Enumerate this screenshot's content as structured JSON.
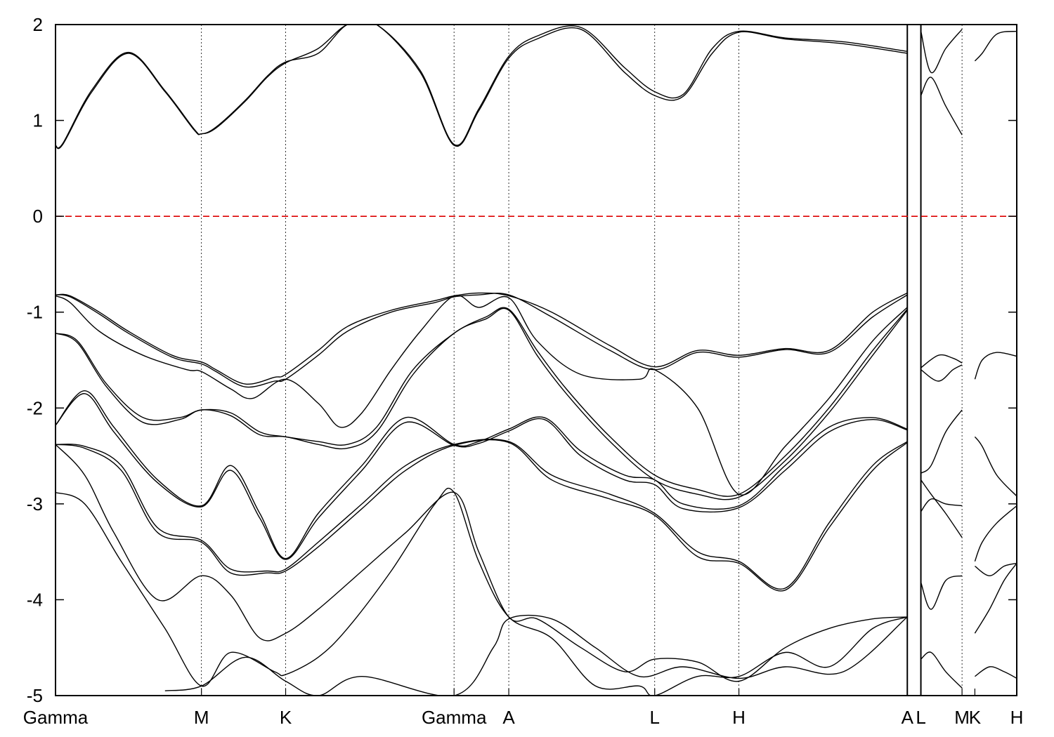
{
  "chart_data": {
    "type": "line",
    "title": "",
    "xlabel": "",
    "ylabel": "",
    "ylim": [
      -5,
      2
    ],
    "yticks": [
      2,
      1,
      0,
      -1,
      -2,
      -3,
      -4,
      -5
    ],
    "fermi_level": {
      "energy": 0,
      "color": "#dd0000",
      "style": "dashed"
    },
    "segments": [
      {
        "from": "Gamma",
        "to": "M",
        "x": [
          0,
          1
        ]
      },
      {
        "from": "M",
        "to": "K",
        "x": [
          1,
          1.577
        ]
      },
      {
        "from": "K",
        "to": "Gamma",
        "x": [
          1.577,
          2.731
        ]
      },
      {
        "from": "Gamma",
        "to": "A",
        "x": [
          2.731,
          3.106
        ]
      },
      {
        "from": "A",
        "to": "L",
        "x": [
          3.106,
          4.106
        ]
      },
      {
        "from": "L",
        "to": "H",
        "x": [
          4.106,
          4.683
        ]
      },
      {
        "from": "H",
        "to": "A",
        "x": [
          4.683,
          5.837
        ]
      },
      {
        "from": "L",
        "to": "M",
        "x": [
          5.837,
          6.212
        ]
      },
      {
        "from": "K",
        "to": "H",
        "x": [
          6.212,
          6.587
        ]
      }
    ],
    "kpoint_labels": [
      {
        "label": "Gamma",
        "x": 0
      },
      {
        "label": "M",
        "x": 1
      },
      {
        "label": "K",
        "x": 1.577
      },
      {
        "label": "Gamma",
        "x": 2.731
      },
      {
        "label": "A",
        "x": 3.106
      },
      {
        "label": "L",
        "x": 4.106
      },
      {
        "label": "H",
        "x": 4.683
      },
      {
        "label": "A",
        "x": 5.837
      },
      {
        "label": "L",
        "x": 5.93
      },
      {
        "label": "M",
        "x": 6.212
      },
      {
        "label": "K",
        "x": 6.3
      },
      {
        "label": "H",
        "x": 6.587
      }
    ],
    "divider_lines": [
      1,
      1.577,
      2.731,
      3.106,
      4.106,
      4.683,
      6.212
    ],
    "break_lines": [
      5.837,
      5.93
    ],
    "bands": [
      {
        "x": [
          0,
          0.05,
          0.25,
          0.5,
          0.75,
          0.95,
          1,
          1.1,
          1.3,
          1.45,
          1.577,
          1.8,
          2.0,
          2.2,
          2.5,
          2.731,
          2.9,
          3.106,
          3.3,
          3.6,
          3.9,
          4.106,
          4.3,
          4.5,
          4.683,
          5.0,
          5.4,
          5.837
        ],
        "y": [
          0.74,
          0.75,
          1.3,
          1.7,
          1.3,
          0.9,
          0.86,
          0.92,
          1.2,
          1.45,
          1.6,
          1.75,
          2.0,
          2.0,
          1.5,
          0.74,
          1.1,
          1.65,
          1.85,
          1.95,
          1.5,
          1.26,
          1.25,
          1.7,
          1.92,
          1.85,
          1.8,
          1.7
        ]
      },
      {
        "x": [
          0,
          0.05,
          0.25,
          0.5,
          0.75,
          0.95,
          1,
          1.1,
          1.3,
          1.45,
          1.577,
          1.8,
          2.0,
          2.2,
          2.5,
          2.731,
          2.9,
          3.106,
          3.3,
          3.6,
          3.9,
          4.106,
          4.3,
          4.5,
          4.683,
          5.0,
          5.4,
          5.837
        ],
        "y": [
          0.74,
          0.76,
          1.32,
          1.71,
          1.31,
          0.91,
          0.86,
          0.93,
          1.21,
          1.46,
          1.61,
          1.7,
          2.0,
          2.0,
          1.52,
          0.75,
          1.12,
          1.67,
          1.88,
          1.97,
          1.55,
          1.3,
          1.27,
          1.75,
          1.93,
          1.86,
          1.82,
          1.72
        ]
      },
      {
        "x": [
          0.75,
          1,
          1.3,
          1.577,
          1.8,
          2.1,
          2.731,
          3.0,
          3.106,
          3.4,
          3.7,
          4.0,
          4.3,
          4.683,
          5.0,
          5.4,
          5.837
        ],
        "y": [
          -4.95,
          -4.9,
          -4.6,
          -4.85,
          -5.0,
          -4.8,
          -5.0,
          -4.5,
          -4.2,
          -4.2,
          -4.5,
          -4.8,
          -4.7,
          -4.82,
          -4.7,
          -4.75,
          -4.18
        ]
      },
      {
        "x": [
          0,
          0.1,
          0.3,
          0.5,
          0.8,
          1,
          1.1,
          1.3,
          1.5,
          1.577,
          1.8,
          2.0,
          2.3,
          2.6,
          2.731,
          2.9,
          3.106,
          3.4,
          3.8,
          4.106,
          4.4,
          4.683,
          5.0,
          5.3,
          5.6,
          5.837
        ],
        "y": [
          -0.82,
          -0.83,
          -1.0,
          -1.2,
          -1.45,
          -1.52,
          -1.6,
          -1.75,
          -1.68,
          -1.65,
          -1.4,
          -1.15,
          -0.98,
          -0.88,
          -0.83,
          -0.8,
          -0.83,
          -1.0,
          -1.35,
          -1.57,
          -1.4,
          -1.45,
          -1.38,
          -1.4,
          -1.0,
          -0.8
        ]
      },
      {
        "x": [
          0,
          0.1,
          0.3,
          0.5,
          0.8,
          1,
          1.1,
          1.3,
          1.5,
          1.577,
          1.8,
          2.0,
          2.3,
          2.6,
          2.731,
          2.9,
          3.106,
          3.4,
          3.8,
          4.106,
          4.4,
          4.683,
          5.0,
          5.3,
          5.6,
          5.837
        ],
        "y": [
          -0.82,
          -0.84,
          -1.02,
          -1.22,
          -1.47,
          -1.54,
          -1.62,
          -1.78,
          -1.72,
          -1.7,
          -1.45,
          -1.2,
          -1.0,
          -0.9,
          -0.84,
          -0.82,
          -0.82,
          -1.05,
          -1.4,
          -1.6,
          -1.42,
          -1.47,
          -1.39,
          -1.42,
          -1.05,
          -0.82
        ]
      },
      {
        "x": [
          0,
          0.1,
          0.3,
          0.6,
          0.9,
          1,
          1.2,
          1.35,
          1.577,
          1.8,
          1.95,
          2.1,
          2.3,
          2.5,
          2.731,
          2.9,
          3.106,
          3.3,
          3.6,
          4.0,
          4.106,
          4.4,
          4.683,
          5.0,
          5.3,
          5.6,
          5.837
        ],
        "y": [
          -0.83,
          -0.9,
          -1.2,
          -1.45,
          -1.6,
          -1.62,
          -1.8,
          -1.9,
          -1.7,
          -1.95,
          -2.2,
          -2.05,
          -1.6,
          -1.2,
          -0.83,
          -0.95,
          -0.85,
          -1.3,
          -1.65,
          -1.7,
          -1.6,
          -2.0,
          -2.9,
          -2.4,
          -1.9,
          -1.3,
          -0.95
        ]
      },
      {
        "x": [
          0,
          0.15,
          0.35,
          0.6,
          0.85,
          1,
          1.2,
          1.4,
          1.577,
          1.8,
          2.0,
          2.2,
          2.45,
          2.731,
          2.95,
          3.106,
          3.3,
          3.5,
          3.8,
          4.106,
          4.4,
          4.683,
          5.0,
          5.3,
          5.6,
          5.837
        ],
        "y": [
          -1.22,
          -1.3,
          -1.75,
          -2.1,
          -2.1,
          -2.02,
          -2.05,
          -2.25,
          -2.3,
          -2.35,
          -2.38,
          -2.2,
          -1.6,
          -1.22,
          -1.05,
          -0.97,
          -1.4,
          -1.8,
          -2.3,
          -2.7,
          -2.85,
          -2.9,
          -2.5,
          -2.0,
          -1.4,
          -0.97
        ]
      },
      {
        "x": [
          0,
          0.15,
          0.35,
          0.6,
          0.85,
          1,
          1.2,
          1.4,
          1.577,
          1.8,
          2.0,
          2.2,
          2.45,
          2.731,
          2.95,
          3.106,
          3.3,
          3.5,
          3.8,
          4.106,
          4.4,
          4.683,
          5.0,
          5.3,
          5.6,
          5.837
        ],
        "y": [
          -1.22,
          -1.32,
          -1.78,
          -2.15,
          -2.12,
          -2.02,
          -2.08,
          -2.28,
          -2.3,
          -2.38,
          -2.42,
          -2.25,
          -1.65,
          -1.22,
          -1.07,
          -0.98,
          -1.45,
          -1.85,
          -2.35,
          -2.75,
          -2.9,
          -2.93,
          -2.55,
          -2.05,
          -1.45,
          -0.98
        ]
      },
      {
        "x": [
          0,
          0.2,
          0.4,
          0.7,
          1,
          1.2,
          1.4,
          1.577,
          1.8,
          2.1,
          2.4,
          2.731,
          2.9,
          3.106,
          3.35,
          3.6,
          3.9,
          4.106,
          4.3,
          4.683,
          5.0,
          5.3,
          5.6,
          5.837
        ],
        "y": [
          -2.18,
          -1.82,
          -2.2,
          -2.75,
          -3.02,
          -2.6,
          -3.1,
          -3.57,
          -3.1,
          -2.6,
          -2.1,
          -2.38,
          -2.35,
          -2.22,
          -2.1,
          -2.45,
          -2.7,
          -2.75,
          -3.0,
          -3.02,
          -2.6,
          -2.2,
          -2.1,
          -2.22
        ]
      },
      {
        "x": [
          0,
          0.2,
          0.4,
          0.7,
          1,
          1.2,
          1.4,
          1.577,
          1.8,
          2.1,
          2.4,
          2.731,
          2.9,
          3.106,
          3.35,
          3.6,
          3.9,
          4.106,
          4.3,
          4.683,
          5.0,
          5.3,
          5.6,
          5.837
        ],
        "y": [
          -2.18,
          -1.85,
          -2.25,
          -2.78,
          -3.03,
          -2.65,
          -3.15,
          -3.58,
          -3.15,
          -2.65,
          -2.15,
          -2.39,
          -2.37,
          -2.24,
          -2.12,
          -2.5,
          -2.75,
          -2.8,
          -3.05,
          -3.04,
          -2.65,
          -2.25,
          -2.12,
          -2.23
        ]
      },
      {
        "x": [
          0,
          0.2,
          0.45,
          0.7,
          1,
          1.2,
          1.45,
          1.577,
          1.8,
          2.1,
          2.4,
          2.731,
          3.106,
          3.4,
          3.8,
          4.106,
          4.4,
          4.683,
          5.0,
          5.3,
          5.6,
          5.837
        ],
        "y": [
          -2.38,
          -2.4,
          -2.6,
          -3.25,
          -3.38,
          -3.68,
          -3.7,
          -3.68,
          -3.4,
          -3.0,
          -2.6,
          -2.38,
          -2.35,
          -2.7,
          -2.9,
          -3.1,
          -3.5,
          -3.6,
          -3.88,
          -3.2,
          -2.6,
          -2.35
        ]
      },
      {
        "x": [
          0,
          0.2,
          0.45,
          0.7,
          1,
          1.2,
          1.45,
          1.577,
          1.8,
          2.1,
          2.4,
          2.731,
          3.106,
          3.4,
          3.8,
          4.106,
          4.4,
          4.683,
          5.0,
          5.3,
          5.6,
          5.837
        ],
        "y": [
          -2.38,
          -2.42,
          -2.65,
          -3.3,
          -3.4,
          -3.72,
          -3.72,
          -3.7,
          -3.45,
          -3.05,
          -2.65,
          -2.39,
          -2.36,
          -2.75,
          -2.95,
          -3.12,
          -3.55,
          -3.62,
          -3.9,
          -3.25,
          -2.65,
          -2.36
        ]
      },
      {
        "x": [
          0,
          0.2,
          0.4,
          0.7,
          1,
          1.2,
          1.4,
          1.577,
          1.8,
          2.1,
          2.4,
          2.731,
          2.9,
          3.106,
          3.3,
          3.6,
          3.9,
          4.106,
          4.4,
          4.683,
          5.0,
          5.3,
          5.6,
          5.837
        ],
        "y": [
          -2.38,
          -2.7,
          -3.3,
          -4.0,
          -3.75,
          -3.95,
          -4.4,
          -4.35,
          -4.1,
          -3.7,
          -3.3,
          -2.88,
          -3.5,
          -4.18,
          -4.2,
          -4.5,
          -4.75,
          -4.62,
          -4.65,
          -4.85,
          -4.5,
          -4.3,
          -4.2,
          -4.18
        ]
      },
      {
        "x": [
          0,
          0.2,
          0.45,
          0.75,
          1,
          1.2,
          1.5,
          1.577,
          1.8,
          2.0,
          2.3,
          2.6,
          2.731,
          2.9,
          3.106,
          3.4,
          3.7,
          4.0,
          4.106,
          4.4,
          4.683,
          5.0,
          5.3,
          5.6,
          5.837
        ],
        "y": [
          -2.88,
          -3.0,
          -3.6,
          -4.3,
          -4.9,
          -4.55,
          -4.75,
          -4.78,
          -4.6,
          -4.3,
          -3.7,
          -3.0,
          -2.88,
          -3.6,
          -4.18,
          -4.4,
          -4.9,
          -4.9,
          -5.0,
          -4.8,
          -4.8,
          -4.55,
          -4.7,
          -4.3,
          -4.18
        ]
      },
      {
        "x": [
          5.93,
          6.0,
          6.1,
          6.212
        ],
        "y": [
          1.26,
          1.45,
          1.15,
          0.85
        ]
      },
      {
        "x": [
          5.93,
          6.0,
          6.1,
          6.212
        ],
        "y": [
          1.93,
          1.5,
          1.75,
          1.95
        ]
      },
      {
        "x": [
          5.93,
          6.05,
          6.15,
          6.212
        ],
        "y": [
          -1.6,
          -1.72,
          -1.6,
          -1.55
        ]
      },
      {
        "x": [
          5.93,
          6.05,
          6.15,
          6.212
        ],
        "y": [
          -1.58,
          -1.45,
          -1.48,
          -1.53
        ]
      },
      {
        "x": [
          5.93,
          6.0,
          6.1,
          6.212
        ],
        "y": [
          -2.68,
          -2.6,
          -2.25,
          -2.02
        ]
      },
      {
        "x": [
          5.93,
          6.0,
          6.1,
          6.212
        ],
        "y": [
          -2.75,
          -2.9,
          -3.1,
          -3.35
        ]
      },
      {
        "x": [
          5.93,
          6.0,
          6.1,
          6.212
        ],
        "y": [
          -3.08,
          -2.95,
          -3.0,
          -3.02
        ]
      },
      {
        "x": [
          5.93,
          6.0,
          6.1,
          6.212
        ],
        "y": [
          -3.82,
          -4.1,
          -3.8,
          -3.75
        ]
      },
      {
        "x": [
          5.93,
          6.0,
          6.1,
          6.212
        ],
        "y": [
          -4.62,
          -4.55,
          -4.75,
          -4.92
        ]
      },
      {
        "x": [
          6.3,
          6.35,
          6.45,
          6.587
        ],
        "y": [
          1.62,
          1.7,
          1.9,
          1.93
        ]
      },
      {
        "x": [
          6.3,
          6.35,
          6.45,
          6.587
        ],
        "y": [
          -1.7,
          -1.5,
          -1.42,
          -1.46
        ]
      },
      {
        "x": [
          6.3,
          6.35,
          6.45,
          6.587
        ],
        "y": [
          -2.3,
          -2.4,
          -2.7,
          -2.92
        ]
      },
      {
        "x": [
          6.3,
          6.35,
          6.45,
          6.587
        ],
        "y": [
          -3.6,
          -3.4,
          -3.2,
          -3.02
        ]
      },
      {
        "x": [
          6.3,
          6.4,
          6.5,
          6.587
        ],
        "y": [
          -3.65,
          -3.75,
          -3.65,
          -3.62
        ]
      },
      {
        "x": [
          6.3,
          6.4,
          6.5,
          6.587
        ],
        "y": [
          -4.35,
          -4.1,
          -3.8,
          -3.62
        ]
      },
      {
        "x": [
          6.3,
          6.4,
          6.5,
          6.587
        ],
        "y": [
          -4.8,
          -4.7,
          -4.75,
          -4.82
        ]
      }
    ]
  }
}
